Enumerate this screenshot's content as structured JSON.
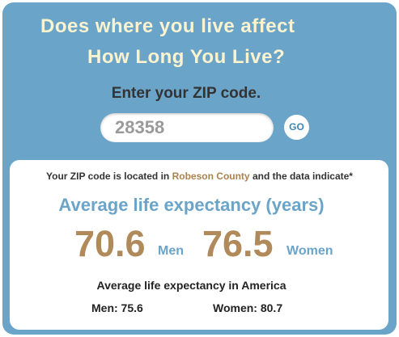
{
  "header": {
    "title_line1": "Does where you live affect",
    "title_line2": "How Long You Live?"
  },
  "form": {
    "prompt": "Enter your ZIP code.",
    "zip": "28358",
    "button": "GO"
  },
  "result": {
    "intro_before": "Your ZIP code is located in",
    "county": "Robeson County",
    "intro_after": "and the data indicate*",
    "heading": "Average life expectancy (years)",
    "men": {
      "value": "70.6",
      "label": "Men"
    },
    "women": {
      "value": "76.5",
      "label": "Women"
    }
  },
  "america": {
    "heading": "Average life expectancy in America",
    "men": "Men: 75.6",
    "women": "Women: 80.7"
  }
}
